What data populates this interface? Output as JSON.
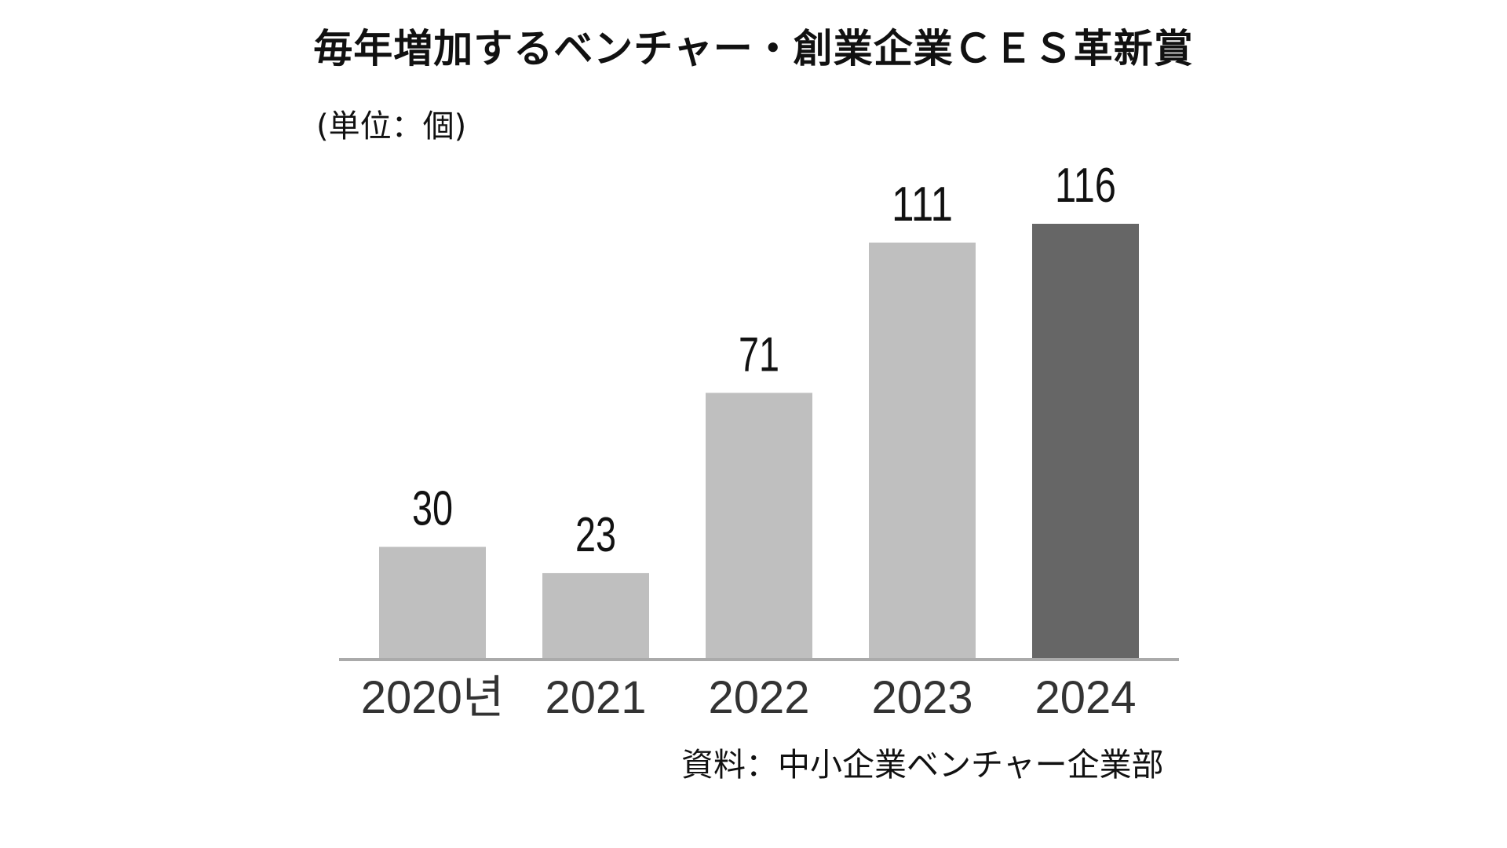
{
  "chart_data": {
    "type": "bar",
    "title": "毎年増加するベンチャー・創業企業ＣＥＳ革新賞",
    "unit": "(単位：個)",
    "source": "資料：中小企業ベンチャー企業部",
    "categories": [
      "2020년",
      "2021",
      "2022",
      "2023",
      "2024"
    ],
    "values": [
      30,
      23,
      71,
      111,
      116
    ],
    "ylim": [
      0,
      116
    ],
    "grid": false,
    "legend": "none",
    "highlight_index": 4,
    "colors": {
      "bar": "#bfbfbf",
      "highlight": "#666666",
      "axis": "#aaaaaa"
    }
  }
}
